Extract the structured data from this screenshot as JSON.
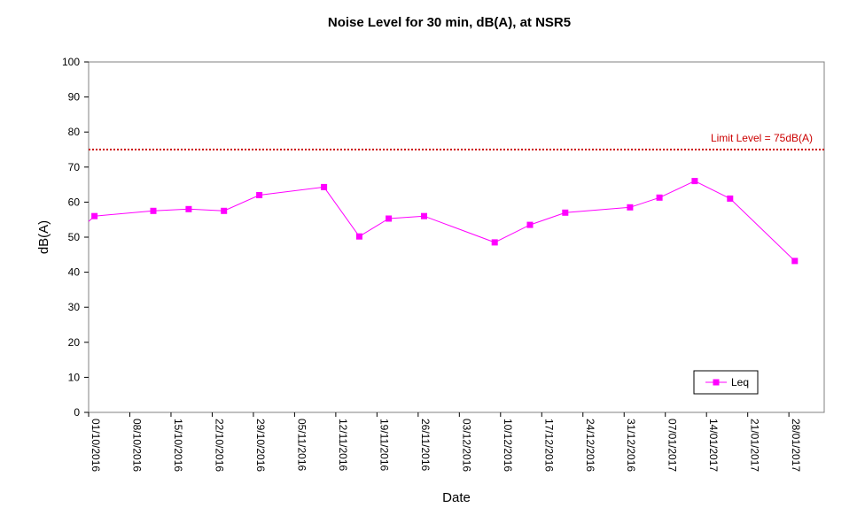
{
  "chart_data": {
    "type": "line",
    "title": "Noise Level for 30 min, dB(A), at NSR5",
    "xlabel": "Date",
    "ylabel": "dB(A)",
    "ylim": [
      0,
      100
    ],
    "yticks": [
      0,
      10,
      20,
      30,
      40,
      50,
      60,
      70,
      80,
      90,
      100
    ],
    "xlim": [
      "2016-10-01",
      "2017-02-03"
    ],
    "xticks": [
      "01/10/2016",
      "08/10/2016",
      "15/10/2016",
      "22/10/2016",
      "29/10/2016",
      "05/11/2016",
      "12/11/2016",
      "19/11/2016",
      "26/11/2016",
      "03/12/2016",
      "10/12/2016",
      "17/12/2016",
      "24/12/2016",
      "31/12/2016",
      "07/01/2017",
      "14/01/2017",
      "21/01/2017",
      "28/01/2017"
    ],
    "series": [
      {
        "name": "Leq",
        "color": "#FF00FF",
        "marker": "square",
        "x": [
          "2016-10-01",
          "2016-10-02",
          "2016-10-12",
          "2016-10-18",
          "2016-10-24",
          "2016-10-30",
          "2016-11-10",
          "2016-11-16",
          "2016-11-21",
          "2016-11-27",
          "2016-12-09",
          "2016-12-15",
          "2016-12-21",
          "2017-01-01",
          "2017-01-06",
          "2017-01-12",
          "2017-01-18",
          "2017-01-29"
        ],
        "values": [
          54.5,
          56,
          57.5,
          58,
          57.5,
          62,
          64.3,
          50.2,
          55.3,
          56,
          48.5,
          53.5,
          57,
          58.5,
          61.3,
          66,
          61,
          43.2
        ]
      }
    ],
    "reference_line": {
      "value": 75,
      "label": "Limit Level = 75dB(A)",
      "color": "#CC0000",
      "style": "dotted"
    },
    "legend": {
      "position": "bottom-right",
      "entries": [
        "Leq"
      ]
    },
    "grid": false
  }
}
